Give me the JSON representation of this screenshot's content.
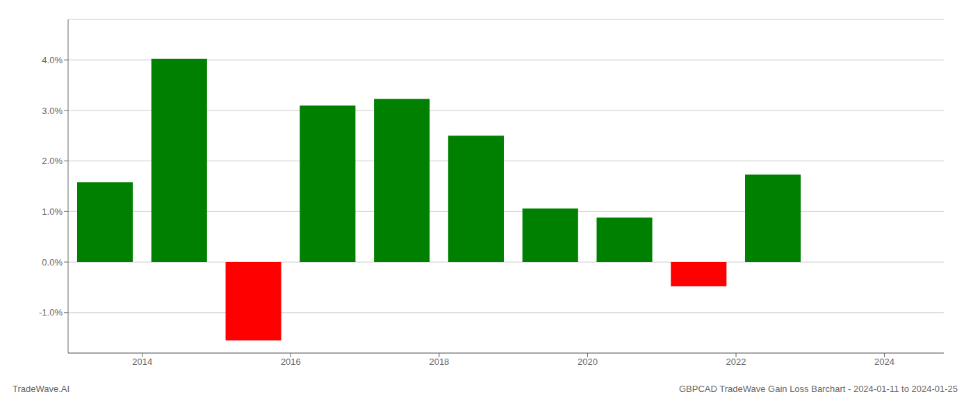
{
  "chart_data": {
    "type": "bar",
    "x": [
      2013.5,
      2014.5,
      2015.5,
      2016.5,
      2017.5,
      2018.5,
      2019.5,
      2020.5,
      2021.5,
      2022.5
    ],
    "values": [
      0.0158,
      0.0402,
      -0.0155,
      0.031,
      0.0323,
      0.025,
      0.0106,
      0.0088,
      -0.0048,
      0.0173
    ],
    "colors": [
      "#008000",
      "#008000",
      "#ff0000",
      "#008000",
      "#008000",
      "#008000",
      "#008000",
      "#008000",
      "#ff0000",
      "#008000"
    ],
    "xlim": [
      2013.0,
      2024.8
    ],
    "xticks": [
      2014,
      2016,
      2018,
      2020,
      2022,
      2024
    ],
    "ylim": [
      -0.018,
      0.048
    ],
    "yticks": [
      {
        "value": -0.01,
        "label": "-1.0%"
      },
      {
        "value": 0.0,
        "label": "0.0%"
      },
      {
        "value": 0.01,
        "label": "1.0%"
      },
      {
        "value": 0.02,
        "label": "2.0%"
      },
      {
        "value": 0.03,
        "label": "3.0%"
      },
      {
        "value": 0.04,
        "label": "4.0%"
      }
    ],
    "grid": true,
    "annotations": [
      "TradeWave.AI",
      "GBPCAD TradeWave Gain Loss Barchart - 2024-01-11 to 2024-01-25"
    ]
  }
}
